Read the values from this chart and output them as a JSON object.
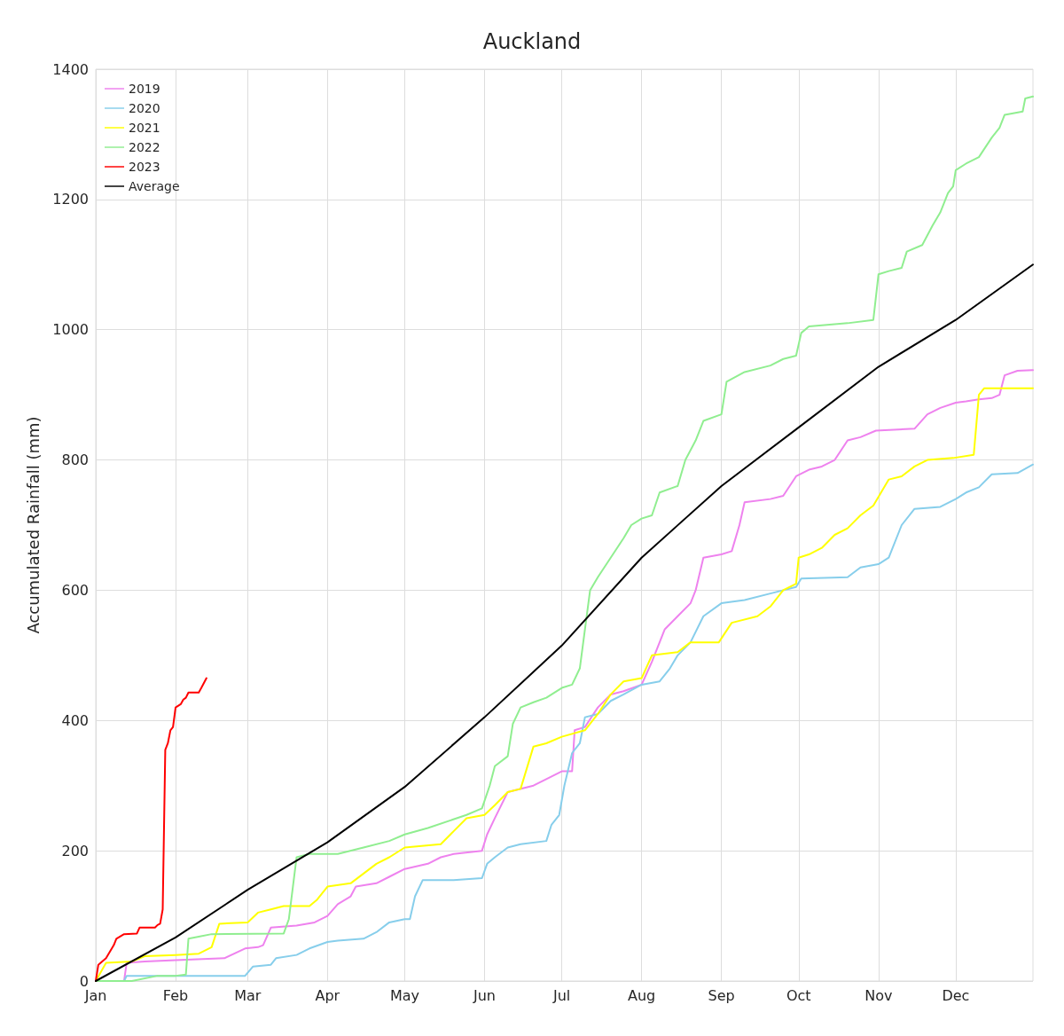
{
  "chart_data": {
    "type": "line",
    "title": "Auckland",
    "ylabel": "Accumulated Rainfall (mm)",
    "xlim": [
      "--01-01",
      "--12-31"
    ],
    "xticks": [
      {
        "value": "--01-01",
        "label": "Jan"
      },
      {
        "value": "--02-01",
        "label": "Feb"
      },
      {
        "value": "--03-01",
        "label": "Mar"
      },
      {
        "value": "--04-01",
        "label": "Apr"
      },
      {
        "value": "--05-01",
        "label": "May"
      },
      {
        "value": "--06-01",
        "label": "Jun"
      },
      {
        "value": "--07-01",
        "label": "Jul"
      },
      {
        "value": "--08-01",
        "label": "Aug"
      },
      {
        "value": "--09-01",
        "label": "Sep"
      },
      {
        "value": "--10-01",
        "label": "Oct"
      },
      {
        "value": "--11-01",
        "label": "Nov"
      },
      {
        "value": "--12-01",
        "label": "Dec"
      }
    ],
    "ylim": [
      0,
      1400
    ],
    "yticks": [
      0,
      200,
      400,
      600,
      800,
      1000,
      1200,
      1400
    ],
    "grid": true,
    "legend": "top left",
    "marker": "none",
    "line_style": "solid",
    "series": [
      {
        "name": "2019",
        "color": "#ee82ee",
        "x": [
          "--01-01",
          "--01-12",
          "--01-13",
          "--01-20",
          "--02-01",
          "--02-20",
          "--02-28",
          "--03-05",
          "--03-07",
          "--03-10",
          "--03-20",
          "--03-27",
          "--04-01",
          "--04-05",
          "--04-10",
          "--04-12",
          "--04-20",
          "--04-25",
          "--05-01",
          "--05-10",
          "--05-15",
          "--05-20",
          "--05-31",
          "--06-02",
          "--06-05",
          "--06-10",
          "--06-20",
          "--06-25",
          "--07-01",
          "--07-05",
          "--07-06",
          "--07-10",
          "--07-15",
          "--07-20",
          "--07-25",
          "--08-01",
          "--08-05",
          "--08-10",
          "--08-15",
          "--08-20",
          "--08-22",
          "--08-25",
          "--09-01",
          "--09-05",
          "--09-08",
          "--09-10",
          "--09-20",
          "--09-25",
          "--09-30",
          "--10-05",
          "--10-10",
          "--10-15",
          "--10-20",
          "--10-25",
          "--10-31",
          "--11-15",
          "--11-20",
          "--11-25",
          "--12-01",
          "--12-05",
          "--12-10",
          "--12-15",
          "--12-18",
          "--12-20",
          "--12-25",
          "--12-31"
        ],
        "values": [
          0,
          0,
          28,
          30,
          32,
          35,
          50,
          52,
          55,
          82,
          85,
          90,
          100,
          118,
          130,
          145,
          150,
          160,
          172,
          180,
          190,
          195,
          200,
          225,
          250,
          290,
          300,
          310,
          322,
          322,
          385,
          390,
          420,
          440,
          445,
          455,
          490,
          540,
          560,
          580,
          600,
          650,
          655,
          660,
          700,
          735,
          740,
          745,
          775,
          785,
          790,
          800,
          830,
          835,
          845,
          848,
          870,
          880,
          888,
          890,
          893,
          895,
          900,
          930,
          937,
          938
        ]
      },
      {
        "name": "2020",
        "color": "#87ceeb",
        "x": [
          "--01-01",
          "--01-12",
          "--01-13",
          "--02-01",
          "--02-28",
          "--03-03",
          "--03-10",
          "--03-12",
          "--03-20",
          "--03-25",
          "--04-01",
          "--04-05",
          "--04-15",
          "--04-20",
          "--04-25",
          "--05-01",
          "--05-03",
          "--05-05",
          "--05-08",
          "--05-20",
          "--05-31",
          "--06-02",
          "--06-05",
          "--06-10",
          "--06-15",
          "--06-25",
          "--06-27",
          "--06-30",
          "--07-02",
          "--07-05",
          "--07-08",
          "--07-10",
          "--07-15",
          "--07-20",
          "--07-25",
          "--08-01",
          "--08-08",
          "--08-12",
          "--08-15",
          "--08-20",
          "--08-25",
          "--09-01",
          "--09-10",
          "--09-20",
          "--09-30",
          "--10-02",
          "--10-20",
          "--10-25",
          "--11-01",
          "--11-05",
          "--11-10",
          "--11-15",
          "--11-25",
          "--12-01",
          "--12-05",
          "--12-10",
          "--12-15",
          "--12-25",
          "--12-31"
        ],
        "values": [
          0,
          0,
          8,
          8,
          8,
          22,
          25,
          35,
          40,
          50,
          60,
          62,
          65,
          75,
          90,
          95,
          95,
          130,
          155,
          155,
          158,
          180,
          190,
          205,
          210,
          215,
          240,
          255,
          300,
          350,
          365,
          405,
          410,
          430,
          440,
          455,
          460,
          480,
          500,
          520,
          560,
          580,
          585,
          595,
          605,
          618,
          620,
          635,
          640,
          650,
          700,
          725,
          728,
          740,
          750,
          758,
          778,
          780,
          793
        ]
      },
      {
        "name": "2021",
        "color": "#ffff00",
        "x": [
          "--01-01",
          "--01-05",
          "--01-15",
          "--01-20",
          "--02-01",
          "--02-10",
          "--02-15",
          "--02-18",
          "--03-01",
          "--03-05",
          "--03-10",
          "--03-15",
          "--03-25",
          "--03-28",
          "--04-01",
          "--04-10",
          "--04-15",
          "--04-20",
          "--04-25",
          "--05-01",
          "--05-15",
          "--05-20",
          "--05-25",
          "--06-01",
          "--06-05",
          "--06-10",
          "--06-15",
          "--06-20",
          "--06-25",
          "--07-01",
          "--07-10",
          "--07-15",
          "--07-20",
          "--07-25",
          "--08-01",
          "--08-05",
          "--08-15",
          "--08-20",
          "--08-31",
          "--09-05",
          "--09-15",
          "--09-20",
          "--09-25",
          "--09-30",
          "--10-01",
          "--10-05",
          "--10-10",
          "--10-15",
          "--10-20",
          "--10-25",
          "--10-30",
          "--11-05",
          "--11-10",
          "--11-15",
          "--11-20",
          "--11-30",
          "--12-08",
          "--12-10",
          "--12-12",
          "--12-31"
        ],
        "values": [
          0,
          28,
          30,
          38,
          40,
          42,
          52,
          88,
          90,
          105,
          110,
          115,
          115,
          125,
          145,
          150,
          165,
          180,
          190,
          205,
          210,
          230,
          250,
          255,
          270,
          290,
          295,
          360,
          365,
          375,
          385,
          410,
          440,
          460,
          465,
          500,
          505,
          520,
          520,
          550,
          560,
          575,
          600,
          610,
          650,
          655,
          665,
          685,
          695,
          715,
          730,
          770,
          775,
          790,
          800,
          803,
          808,
          900,
          910,
          910
        ]
      },
      {
        "name": "2022",
        "color": "#90ee90",
        "x": [
          "--01-01",
          "--01-15",
          "--01-25",
          "--02-01",
          "--02-05",
          "--02-06",
          "--02-10",
          "--02-15",
          "--03-15",
          "--03-17",
          "--03-20",
          "--03-25",
          "--04-05",
          "--04-15",
          "--04-25",
          "--05-01",
          "--05-10",
          "--05-25",
          "--05-31",
          "--06-03",
          "--06-05",
          "--06-10",
          "--06-12",
          "--06-15",
          "--06-20",
          "--06-25",
          "--07-01",
          "--07-05",
          "--07-08",
          "--07-10",
          "--07-12",
          "--07-15",
          "--07-20",
          "--07-25",
          "--07-28",
          "--08-01",
          "--08-05",
          "--08-08",
          "--08-15",
          "--08-18",
          "--08-22",
          "--08-25",
          "--09-01",
          "--09-03",
          "--09-10",
          "--09-20",
          "--09-25",
          "--09-30",
          "--10-02",
          "--10-05",
          "--10-20",
          "--10-30",
          "--11-01",
          "--11-05",
          "--11-10",
          "--11-12",
          "--11-18",
          "--11-22",
          "--11-25",
          "--11-28",
          "--11-30",
          "--12-01",
          "--12-05",
          "--12-10",
          "--12-15",
          "--12-18",
          "--12-20",
          "--12-27",
          "--12-28",
          "--12-31"
        ],
        "values": [
          0,
          0,
          8,
          8,
          10,
          65,
          68,
          72,
          73,
          95,
          190,
          195,
          195,
          205,
          215,
          225,
          235,
          255,
          265,
          300,
          330,
          345,
          395,
          420,
          428,
          435,
          450,
          455,
          480,
          540,
          600,
          620,
          650,
          680,
          700,
          710,
          715,
          750,
          760,
          800,
          830,
          860,
          870,
          920,
          935,
          945,
          955,
          960,
          995,
          1005,
          1010,
          1015,
          1085,
          1090,
          1095,
          1120,
          1130,
          1160,
          1180,
          1210,
          1220,
          1245,
          1255,
          1265,
          1295,
          1310,
          1330,
          1335,
          1355,
          1358
        ]
      },
      {
        "name": "2023",
        "color": "#ff0000",
        "x": [
          "--01-01",
          "--01-02",
          "--01-05",
          "--01-08",
          "--01-09",
          "--01-12",
          "--01-17",
          "--01-18",
          "--01-24",
          "--01-25",
          "--01-26",
          "--01-27",
          "--01-28",
          "--01-29",
          "--01-30",
          "--01-31",
          "--02-01",
          "--02-03",
          "--02-04",
          "--02-05",
          "--02-06",
          "--02-10",
          "--02-11",
          "--02-13"
        ],
        "values": [
          0,
          25,
          35,
          55,
          65,
          72,
          73,
          82,
          82,
          86,
          88,
          110,
          355,
          365,
          385,
          390,
          420,
          425,
          432,
          435,
          443,
          443,
          450,
          465
        ]
      },
      {
        "name": "Average",
        "color": "#000000",
        "x": [
          "--01-01",
          "--02-01",
          "--03-01",
          "--04-01",
          "--05-01",
          "--06-01",
          "--07-01",
          "--08-01",
          "--09-01",
          "--10-01",
          "--11-01",
          "--12-01",
          "--12-31"
        ],
        "values": [
          0,
          67,
          140,
          213,
          298,
          405,
          515,
          650,
          760,
          850,
          943,
          1015,
          1100
        ]
      }
    ]
  }
}
